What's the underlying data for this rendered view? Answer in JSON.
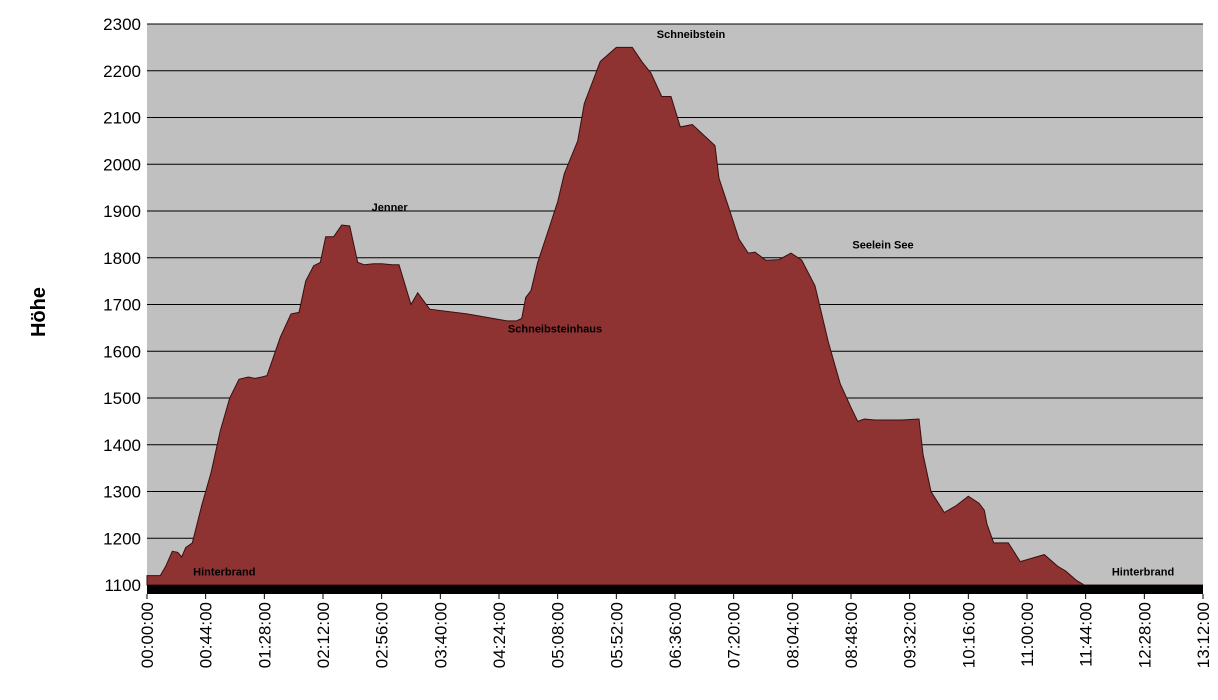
{
  "chart_data": {
    "type": "area",
    "title": "",
    "xlabel": "",
    "ylabel": "Höhe",
    "ylim": [
      1100,
      2300
    ],
    "grid": true,
    "legend": "none",
    "colors": {
      "fill": "#8e3232",
      "stroke": "#3a0f0f",
      "plot_bg": "#c0c0c0",
      "baseline": "#000000"
    },
    "y_ticks": [
      "1100",
      "1200",
      "1300",
      "1400",
      "1500",
      "1600",
      "1700",
      "1800",
      "1900",
      "2000",
      "2100",
      "2200",
      "2300"
    ],
    "x_ticks": [
      "00:00:00",
      "00:44:00",
      "01:28:00",
      "02:12:00",
      "02:56:00",
      "03:40:00",
      "04:24:00",
      "05:08:00",
      "05:52:00",
      "06:36:00",
      "07:20:00",
      "08:04:00",
      "08:48:00",
      "09:32:00",
      "10:16:00",
      "11:00:00",
      "11:44:00",
      "12:28:00",
      "13:12:00"
    ],
    "x_range_minutes": [
      0,
      792
    ],
    "points_time": [
      "00:00:00",
      "00:10:00",
      "00:14:00",
      "00:19:00",
      "00:23:00",
      "00:26:00",
      "00:29:00",
      "00:34:00",
      "00:41:00",
      "00:48:00",
      "00:55:00",
      "01:02:00",
      "01:09:00",
      "01:16:00",
      "01:21:00",
      "01:26:00",
      "01:30:00",
      "01:40:00",
      "01:48:00",
      "01:54:00",
      "01:59:00",
      "02:05:00",
      "02:10:00",
      "02:14:00",
      "02:20:00",
      "02:26:00",
      "02:32:00",
      "02:38:00",
      "02:43:00",
      "02:50:00",
      "02:56:00",
      "03:04:00",
      "03:09:00",
      "03:18:00",
      "03:23:00",
      "03:32:00",
      "04:00:00",
      "04:30:00",
      "04:37:00",
      "04:41:00",
      "04:44:00",
      "04:48:00",
      "04:53:00",
      "05:00:00",
      "05:08:00",
      "05:13:00",
      "05:23:00",
      "05:28:00",
      "05:40:00",
      "05:52:00",
      "06:04:00",
      "06:11:00",
      "06:18:00",
      "06:26:00",
      "06:33:00",
      "06:40:00",
      "06:49:00",
      "07:06:00",
      "07:09:00",
      "07:16:00",
      "07:24:00",
      "07:31:00",
      "07:36:00",
      "07:44:00",
      "07:47:00",
      "07:54:00",
      "08:03:00",
      "08:11:00",
      "08:21:00",
      "08:31:00",
      "08:40:00",
      "08:48:00",
      "08:53:00",
      "08:58:00",
      "09:06:00",
      "09:26:00",
      "09:39:00",
      "09:42:00",
      "09:48:00",
      "09:58:00",
      "10:07:00",
      "10:16:00",
      "10:24:00",
      "10:28:00",
      "10:30:00",
      "10:35:00",
      "10:41:00",
      "10:46:00",
      "10:55:00",
      "11:13:00",
      "11:23:00",
      "11:29:00",
      "11:37:00",
      "11:43:00",
      "11:46:00",
      "11:53:00",
      "12:01:00",
      "12:08:00",
      "12:15:00",
      "12:19:00",
      "12:28:00",
      "12:36:00",
      "12:43:00",
      "12:48:00",
      "12:52:00",
      "12:57:00",
      "13:04:00",
      "13:12:00"
    ],
    "points_altitude": [
      1120,
      1120,
      1140,
      1172,
      1170,
      1160,
      1180,
      1190,
      1270,
      1340,
      1430,
      1500,
      1540,
      1545,
      1542,
      1545,
      1548,
      1630,
      1680,
      1683,
      1750,
      1783,
      1790,
      1845,
      1845,
      1870,
      1868,
      1790,
      1785,
      1787,
      1787,
      1785,
      1785,
      1700,
      1725,
      1690,
      1680,
      1665,
      1665,
      1670,
      1715,
      1730,
      1790,
      1850,
      1920,
      1980,
      2050,
      2130,
      2220,
      2250,
      2250,
      2220,
      2195,
      2145,
      2145,
      2080,
      2085,
      2040,
      1970,
      1910,
      1840,
      1810,
      1812,
      1795,
      1795,
      1796,
      1810,
      1795,
      1740,
      1620,
      1530,
      1480,
      1450,
      1455,
      1453,
      1453,
      1455,
      1380,
      1300,
      1255,
      1270,
      1290,
      1275,
      1260,
      1230,
      1190,
      1190,
      1190,
      1150,
      1165,
      1140,
      1130,
      1110,
      1100,
      1100,
      1100,
      1100,
      1100,
      1100,
      1100,
      1100,
      1100,
      1100,
      1100,
      1100,
      1100,
      1100,
      1100
    ],
    "annotations": [
      {
        "text": "Hinterbrand",
        "time": "00:58:00",
        "altitude": 1120
      },
      {
        "text": "Jenner",
        "time": "03:02:00",
        "altitude": 1900
      },
      {
        "text": "Schneibsteinhaus",
        "time": "05:06:00",
        "altitude": 1640
      },
      {
        "text": "Schneibstein",
        "time": "06:48:00",
        "altitude": 2270
      },
      {
        "text": "Seelein See",
        "time": "09:12:00",
        "altitude": 1820
      },
      {
        "text": "Hinterbrand",
        "time": "12:27:00",
        "altitude": 1120
      }
    ]
  }
}
